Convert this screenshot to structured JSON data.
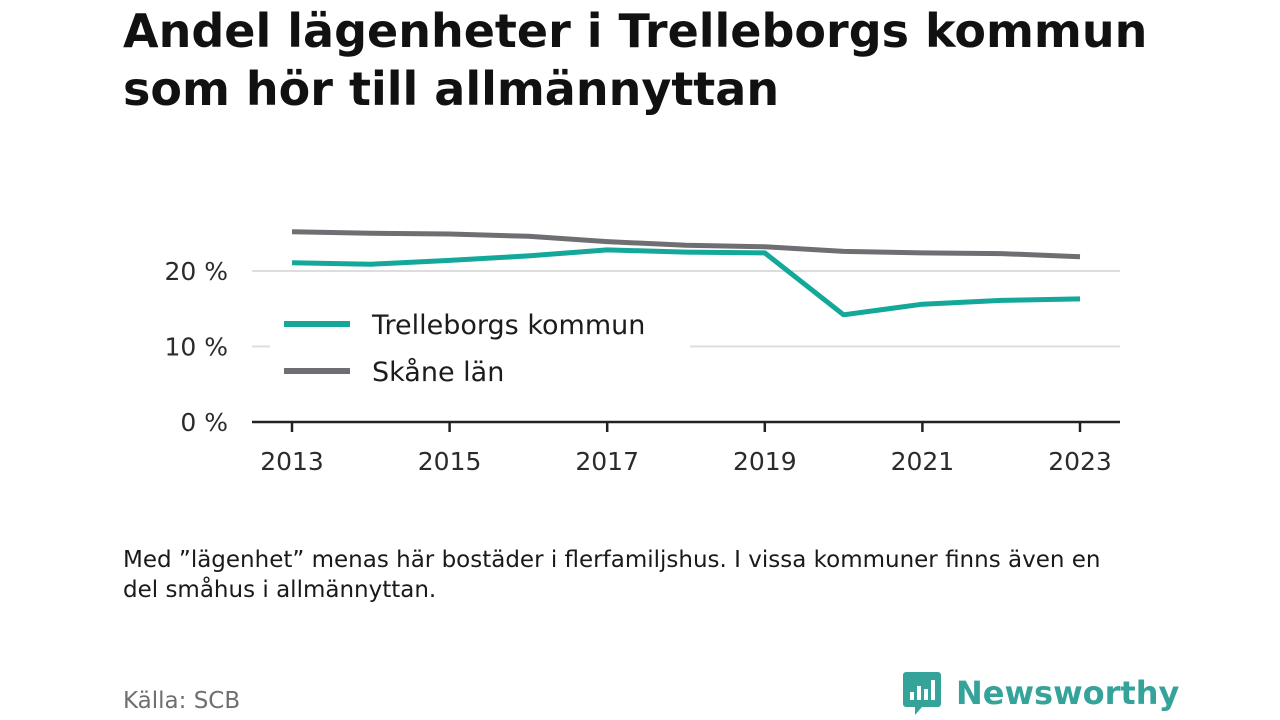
{
  "title": "Andel lägenheter i Trelleborgs kommun som hör till allmännyttan",
  "note": "Med ”lägenhet” menas här bostäder i flerfamiljshus. I vissa kommuner finns även en del småhus i allmännyttan.",
  "source": "Källa: SCB",
  "brand": "Newsworthy",
  "colors": {
    "trelleborg": "#14a89a",
    "skane": "#6e6e73",
    "grid": "#dddddd",
    "axis": "#222222",
    "brand": "#36a39b"
  },
  "chart_data": {
    "type": "line",
    "x": [
      2013,
      2014,
      2015,
      2016,
      2017,
      2018,
      2019,
      2020,
      2021,
      2022,
      2023
    ],
    "x_ticks": [
      "2013",
      "2015",
      "2017",
      "2019",
      "2021",
      "2023"
    ],
    "y_ticks": [
      "0 %",
      "10 %",
      "20 %"
    ],
    "ylim": [
      0,
      27
    ],
    "grid": true,
    "legend_position": "left",
    "series": [
      {
        "name": "Trelleborgs kommun",
        "color": "#14a89a",
        "values": [
          21.1,
          20.9,
          21.4,
          22.0,
          22.8,
          22.5,
          22.4,
          14.2,
          15.6,
          16.1,
          16.3
        ]
      },
      {
        "name": "Skåne län",
        "color": "#6e6e73",
        "values": [
          25.2,
          25.0,
          24.9,
          24.6,
          23.9,
          23.4,
          23.2,
          22.6,
          22.4,
          22.3,
          21.9
        ]
      }
    ]
  }
}
